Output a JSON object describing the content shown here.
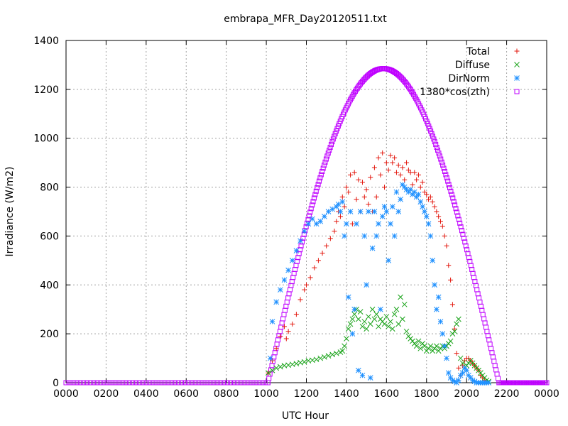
{
  "chart_data": {
    "type": "scatter",
    "title": "embrapa_MFR_Day20120511.txt",
    "xlabel": "UTC Hour",
    "ylabel": "Irradiance (W/m2)",
    "xlim": [
      0,
      24
    ],
    "ylim": [
      0,
      1400
    ],
    "grid": true,
    "legend_position": "top-right",
    "x_ticks": [
      {
        "value": 0,
        "label": "0000"
      },
      {
        "value": 2,
        "label": "0200"
      },
      {
        "value": 4,
        "label": "0400"
      },
      {
        "value": 6,
        "label": "0600"
      },
      {
        "value": 8,
        "label": "0800"
      },
      {
        "value": 10,
        "label": "1000"
      },
      {
        "value": 12,
        "label": "1200"
      },
      {
        "value": 14,
        "label": "1400"
      },
      {
        "value": 16,
        "label": "1600"
      },
      {
        "value": 18,
        "label": "1800"
      },
      {
        "value": 20,
        "label": "2000"
      },
      {
        "value": 22,
        "label": "2200"
      },
      {
        "value": 24,
        "label": "0000"
      }
    ],
    "y_ticks": [
      {
        "value": 0,
        "label": "0"
      },
      {
        "value": 200,
        "label": "200"
      },
      {
        "value": 400,
        "label": "400"
      },
      {
        "value": 600,
        "label": "600"
      },
      {
        "value": 800,
        "label": "800"
      },
      {
        "value": 1000,
        "label": "1000"
      },
      {
        "value": 1200,
        "label": "1200"
      },
      {
        "value": 1400,
        "label": "1400"
      }
    ],
    "series": [
      {
        "name": "Total",
        "marker": "plus",
        "color": "#e3170d",
        "x": [
          10.1,
          10.3,
          10.5,
          10.7,
          10.9,
          11.0,
          11.1,
          11.3,
          11.5,
          11.7,
          11.9,
          12.0,
          12.2,
          12.4,
          12.6,
          12.8,
          13.0,
          13.2,
          13.4,
          13.5,
          13.6,
          13.7,
          13.8,
          13.9,
          14.0,
          14.1,
          14.2,
          14.3,
          14.4,
          14.5,
          14.6,
          14.7,
          14.8,
          14.9,
          15.0,
          15.1,
          15.2,
          15.3,
          15.4,
          15.5,
          15.6,
          15.7,
          15.8,
          15.9,
          16.0,
          16.1,
          16.2,
          16.3,
          16.4,
          16.5,
          16.6,
          16.7,
          16.8,
          16.9,
          17.0,
          17.1,
          17.2,
          17.3,
          17.4,
          17.5,
          17.6,
          17.7,
          17.8,
          17.9,
          18.0,
          18.1,
          18.2,
          18.3,
          18.4,
          18.5,
          18.6,
          18.7,
          18.8,
          18.9,
          19.0,
          19.1,
          19.2,
          19.3,
          19.4,
          19.5,
          19.6,
          19.7,
          19.8,
          19.9,
          20.0,
          20.1,
          20.2,
          20.3,
          20.4,
          20.5,
          20.6,
          20.7,
          20.8,
          20.9,
          21.0,
          21.1
        ],
        "y": [
          40,
          90,
          140,
          190,
          230,
          180,
          210,
          240,
          280,
          340,
          380,
          400,
          430,
          470,
          500,
          530,
          560,
          590,
          620,
          660,
          700,
          680,
          760,
          720,
          800,
          780,
          850,
          650,
          860,
          750,
          830,
          700,
          820,
          760,
          790,
          730,
          840,
          700,
          880,
          760,
          920,
          850,
          940,
          800,
          900,
          870,
          930,
          900,
          920,
          860,
          890,
          850,
          880,
          830,
          900,
          870,
          860,
          810,
          860,
          830,
          850,
          800,
          820,
          780,
          770,
          750,
          760,
          740,
          720,
          700,
          680,
          660,
          640,
          600,
          560,
          480,
          420,
          320,
          220,
          120,
          60,
          30,
          70,
          90,
          100,
          100,
          90,
          80,
          70,
          60,
          50,
          30,
          20,
          10,
          5,
          0
        ]
      },
      {
        "name": "Diffuse",
        "marker": "cross",
        "color": "#1aa31a",
        "x": [
          10.1,
          10.3,
          10.5,
          10.7,
          10.9,
          11.1,
          11.3,
          11.5,
          11.7,
          11.9,
          12.1,
          12.3,
          12.5,
          12.7,
          12.9,
          13.1,
          13.3,
          13.5,
          13.7,
          13.8,
          13.9,
          14.0,
          14.1,
          14.2,
          14.3,
          14.4,
          14.5,
          14.6,
          14.7,
          14.8,
          14.9,
          15.0,
          15.1,
          15.2,
          15.3,
          15.4,
          15.5,
          15.6,
          15.7,
          15.8,
          15.9,
          16.0,
          16.1,
          16.2,
          16.3,
          16.4,
          16.5,
          16.6,
          16.7,
          16.8,
          16.9,
          17.0,
          17.1,
          17.2,
          17.3,
          17.4,
          17.5,
          17.6,
          17.7,
          17.8,
          17.9,
          18.0,
          18.1,
          18.2,
          18.3,
          18.4,
          18.5,
          18.6,
          18.7,
          18.8,
          18.9,
          19.0,
          19.1,
          19.2,
          19.3,
          19.4,
          19.5,
          19.6,
          19.7,
          19.8,
          19.9,
          20.0,
          20.1,
          20.2,
          20.3,
          20.4,
          20.5,
          20.6,
          20.7,
          20.8,
          20.9,
          21.0,
          21.1
        ],
        "y": [
          40,
          50,
          60,
          65,
          70,
          72,
          75,
          78,
          82,
          85,
          90,
          92,
          95,
          100,
          105,
          110,
          115,
          120,
          125,
          130,
          150,
          180,
          220,
          240,
          260,
          280,
          300,
          260,
          290,
          230,
          250,
          220,
          270,
          240,
          300,
          260,
          280,
          230,
          260,
          250,
          240,
          270,
          230,
          250,
          220,
          280,
          300,
          240,
          350,
          260,
          320,
          210,
          190,
          180,
          170,
          160,
          150,
          170,
          140,
          160,
          150,
          130,
          140,
          150,
          130,
          140,
          150,
          130,
          140,
          150,
          140,
          150,
          160,
          170,
          200,
          210,
          240,
          260,
          100,
          80,
          60,
          70,
          80,
          90,
          80,
          70,
          60,
          50,
          40,
          30,
          20,
          10,
          5
        ]
      },
      {
        "name": "DirNorm",
        "marker": "star",
        "color": "#1e90ff",
        "x": [
          10.2,
          10.3,
          10.5,
          10.7,
          10.9,
          11.1,
          11.3,
          11.5,
          11.7,
          11.9,
          12.1,
          12.3,
          12.5,
          12.7,
          12.9,
          13.1,
          13.3,
          13.5,
          13.6,
          13.7,
          13.8,
          13.9,
          14.0,
          14.1,
          14.2,
          14.3,
          14.4,
          14.5,
          14.6,
          14.7,
          14.8,
          14.9,
          15.0,
          15.1,
          15.2,
          15.3,
          15.4,
          15.5,
          15.6,
          15.7,
          15.8,
          15.9,
          16.0,
          16.1,
          16.2,
          16.3,
          16.4,
          16.5,
          16.6,
          16.7,
          16.8,
          16.9,
          17.0,
          17.1,
          17.2,
          17.3,
          17.4,
          17.5,
          17.6,
          17.7,
          17.8,
          17.9,
          18.0,
          18.1,
          18.2,
          18.3,
          18.4,
          18.5,
          18.6,
          18.7,
          18.8,
          18.9,
          19.0,
          19.1,
          19.2,
          19.3,
          19.4,
          19.5,
          19.6,
          19.7,
          19.8,
          19.9,
          20.0,
          20.1,
          20.2,
          20.3,
          20.4,
          20.5,
          20.6,
          20.7,
          20.8,
          20.9,
          21.0,
          21.1
        ],
        "y": [
          100,
          250,
          330,
          380,
          420,
          460,
          500,
          540,
          580,
          620,
          650,
          670,
          650,
          660,
          680,
          700,
          710,
          720,
          730,
          700,
          740,
          600,
          650,
          350,
          700,
          200,
          300,
          650,
          50,
          700,
          30,
          600,
          400,
          700,
          20,
          550,
          700,
          600,
          650,
          300,
          680,
          720,
          700,
          500,
          650,
          720,
          600,
          780,
          700,
          750,
          810,
          800,
          790,
          780,
          790,
          770,
          780,
          760,
          770,
          740,
          720,
          700,
          680,
          650,
          600,
          500,
          400,
          300,
          350,
          250,
          200,
          150,
          100,
          40,
          20,
          10,
          5,
          0,
          10,
          30,
          40,
          60,
          50,
          30,
          20,
          10,
          5,
          0,
          0,
          0,
          0,
          0,
          0,
          0
        ]
      },
      {
        "name": "1380*cos(zth)",
        "marker": "square",
        "color": "#bf00ff",
        "curve": {
          "x_start": 10.08,
          "x_end": 21.62,
          "peak_x": 15.85,
          "peak_y": 1285
        }
      }
    ]
  }
}
